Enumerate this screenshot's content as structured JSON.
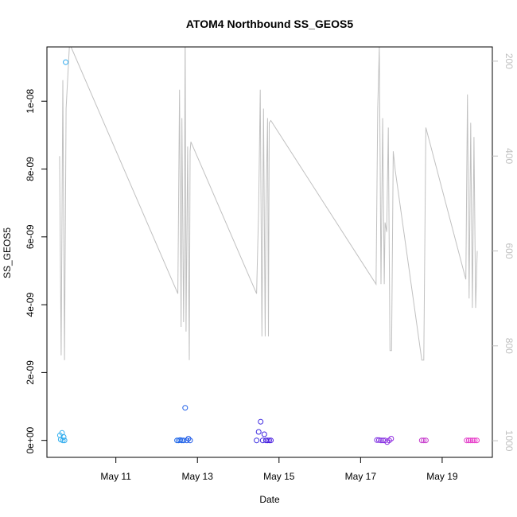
{
  "chart_data": {
    "type": "scatter",
    "title": "ATOM4 Northbound SS_GEOS5",
    "xlabel": "Date",
    "ylabel": "SS_GEOS5",
    "x_ticks": [
      "May 11",
      "May 13",
      "May 15",
      "May 17",
      "May 19"
    ],
    "x_tick_days": [
      11,
      13,
      15,
      17,
      19
    ],
    "xlim_days": [
      9.31,
      20.23
    ],
    "ylim": [
      -5e-10,
      1.16e-08
    ],
    "y_ticks": [
      0,
      2e-09,
      4e-09,
      6e-09,
      8e-09,
      1e-08
    ],
    "y_tick_labels": [
      "0e+00",
      "2e-09",
      "4e-09",
      "6e-09",
      "8e-09",
      "1e-08"
    ],
    "y2_ticks": [
      200,
      400,
      600,
      800,
      1000
    ],
    "y2_tick_labels": [
      "200",
      "400",
      "600",
      "800",
      "1000"
    ],
    "y2lim": [
      1035,
      170
    ],
    "grid": false,
    "series": [
      {
        "kind": "points",
        "points": [
          {
            "day": 9.63,
            "v": 1.5e-10,
            "c": "#33b0ef"
          },
          {
            "day": 9.65,
            "v": 2.5e-11,
            "c": "#33b0ef"
          },
          {
            "day": 9.68,
            "v": 2.2e-10,
            "c": "#33aeee"
          },
          {
            "day": 9.7,
            "v": 0,
            "c": "#33aeee"
          },
          {
            "day": 9.72,
            "v": 1e-10,
            "c": "#30abee"
          },
          {
            "day": 9.74,
            "v": 0,
            "c": "#30abee"
          },
          {
            "day": 9.77,
            "v": 1.115e-08,
            "c": "#2ca8ee"
          },
          {
            "day": 12.5,
            "v": 0,
            "c": "#1e68e8"
          },
          {
            "day": 12.54,
            "v": 0,
            "c": "#1e66e8"
          },
          {
            "day": 12.58,
            "v": 1e-11,
            "c": "#1e64e8"
          },
          {
            "day": 12.62,
            "v": 0,
            "c": "#1e62e8"
          },
          {
            "day": 12.66,
            "v": 0,
            "c": "#1e60e8"
          },
          {
            "day": 12.7,
            "v": 9.6e-10,
            "c": "#1e5ee8"
          },
          {
            "day": 12.74,
            "v": 0,
            "c": "#1e5ce8"
          },
          {
            "day": 12.78,
            "v": 5e-11,
            "c": "#1e5ae8"
          },
          {
            "day": 12.82,
            "v": 0,
            "c": "#1e58e8"
          },
          {
            "day": 14.45,
            "v": 0,
            "c": "#3a2ce0"
          },
          {
            "day": 14.5,
            "v": 2.5e-10,
            "c": "#3c2ae0"
          },
          {
            "day": 14.55,
            "v": 5.5e-10,
            "c": "#3e28e0"
          },
          {
            "day": 14.6,
            "v": 0,
            "c": "#4026e0"
          },
          {
            "day": 14.64,
            "v": 1.8e-10,
            "c": "#4224e0"
          },
          {
            "day": 14.68,
            "v": 0,
            "c": "#4422e0"
          },
          {
            "day": 14.72,
            "v": 0,
            "c": "#4620e0"
          },
          {
            "day": 14.76,
            "v": 0,
            "c": "#481ee0"
          },
          {
            "day": 14.8,
            "v": 0,
            "c": "#4a1ce0"
          },
          {
            "day": 17.4,
            "v": 1e-11,
            "c": "#7a2ae0"
          },
          {
            "day": 17.45,
            "v": 1e-11,
            "c": "#7c2ae0"
          },
          {
            "day": 17.5,
            "v": 0,
            "c": "#7e2ae0"
          },
          {
            "day": 17.55,
            "v": 0,
            "c": "#802ae0"
          },
          {
            "day": 17.6,
            "v": 0,
            "c": "#842ae0"
          },
          {
            "day": 17.65,
            "v": -5e-11,
            "c": "#882ae0"
          },
          {
            "day": 17.7,
            "v": 0,
            "c": "#8c2ae0"
          },
          {
            "day": 17.75,
            "v": 5e-11,
            "c": "#902ae0"
          },
          {
            "day": 18.5,
            "v": 0,
            "c": "#c43acc"
          },
          {
            "day": 18.55,
            "v": 0,
            "c": "#c63acc"
          },
          {
            "day": 18.6,
            "v": 0,
            "c": "#c83acc"
          },
          {
            "day": 19.6,
            "v": 0,
            "c": "#e03ac8"
          },
          {
            "day": 19.65,
            "v": 0,
            "c": "#e23ac8"
          },
          {
            "day": 19.7,
            "v": 0,
            "c": "#e43ac8"
          },
          {
            "day": 19.75,
            "v": 0,
            "c": "#e63ac8"
          },
          {
            "day": 19.8,
            "v": 0,
            "c": "#e83ac8"
          },
          {
            "day": 19.85,
            "v": 0,
            "c": "#ea3ac8"
          }
        ]
      },
      {
        "kind": "line",
        "axis": "right",
        "color": "#c0c0c0",
        "points": [
          [
            9.62,
            400
          ],
          [
            9.66,
            820
          ],
          [
            9.7,
            240
          ],
          [
            9.74,
            830
          ],
          [
            9.78,
            300
          ],
          [
            9.86,
            170
          ],
          [
            9.9,
            170
          ],
          [
            12.52,
            690
          ],
          [
            12.56,
            260
          ],
          [
            12.6,
            760
          ],
          [
            12.62,
            320
          ],
          [
            12.66,
            750
          ],
          [
            12.68,
            570
          ],
          [
            12.7,
            130
          ],
          [
            12.72,
            770
          ],
          [
            12.76,
            380
          ],
          [
            12.8,
            830
          ],
          [
            12.82,
            390
          ],
          [
            12.84,
            370
          ],
          [
            14.45,
            690
          ],
          [
            14.5,
            510
          ],
          [
            14.54,
            260
          ],
          [
            14.58,
            780
          ],
          [
            14.62,
            300
          ],
          [
            14.66,
            780
          ],
          [
            14.68,
            510
          ],
          [
            14.72,
            320
          ],
          [
            14.74,
            780
          ],
          [
            14.76,
            330
          ],
          [
            14.8,
            325
          ],
          [
            17.38,
            670
          ],
          [
            17.42,
            300
          ],
          [
            17.46,
            170
          ],
          [
            17.5,
            670
          ],
          [
            17.54,
            320
          ],
          [
            17.58,
            670
          ],
          [
            17.6,
            540
          ],
          [
            17.64,
            560
          ],
          [
            17.68,
            340
          ],
          [
            17.72,
            810
          ],
          [
            17.76,
            810
          ],
          [
            17.8,
            390
          ],
          [
            17.85,
            430
          ],
          [
            18.5,
            830
          ],
          [
            18.55,
            830
          ],
          [
            18.6,
            340
          ],
          [
            19.58,
            660
          ],
          [
            19.62,
            270
          ],
          [
            19.66,
            700
          ],
          [
            19.7,
            330
          ],
          [
            19.74,
            720
          ],
          [
            19.78,
            360
          ],
          [
            19.82,
            720
          ],
          [
            19.86,
            600
          ]
        ]
      }
    ]
  }
}
